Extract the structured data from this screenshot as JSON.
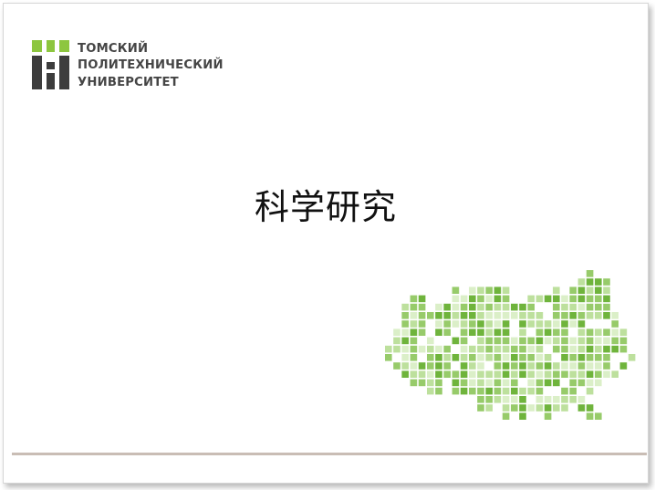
{
  "logo": {
    "lines": [
      "ТОМСКИЙ",
      "ПОЛИТЕХНИЧЕСКИЙ",
      "УНИВЕРСИТЕТ"
    ],
    "colors": {
      "green": "#8dc63f",
      "dark": "#3d3d3d"
    }
  },
  "slide": {
    "title": "科学研究"
  },
  "decoration": {
    "mosaic_colors": [
      "#6fb43c",
      "#97cb6a",
      "#bde09d",
      "#dbefc8"
    ],
    "rule_color": "#c9bdb5"
  }
}
